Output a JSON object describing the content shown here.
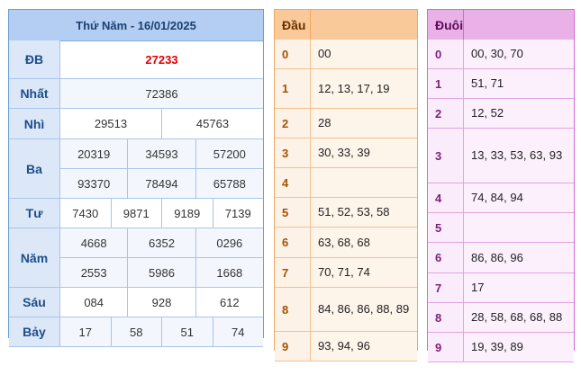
{
  "results": {
    "title": "Thứ Năm - 16/01/2025",
    "prizes": [
      {
        "name": "ĐB",
        "rows": [
          [
            "27233"
          ]
        ],
        "highlight": true
      },
      {
        "name": "Nhất",
        "rows": [
          [
            "72386"
          ]
        ]
      },
      {
        "name": "Nhì",
        "rows": [
          [
            "29513",
            "45763"
          ]
        ]
      },
      {
        "name": "Ba",
        "rows": [
          [
            "20319",
            "34593",
            "57200"
          ],
          [
            "93370",
            "78494",
            "65788"
          ]
        ]
      },
      {
        "name": "Tư",
        "rows": [
          [
            "7430",
            "9871",
            "9189",
            "7139"
          ]
        ]
      },
      {
        "name": "Năm",
        "rows": [
          [
            "4668",
            "6352",
            "0296"
          ],
          [
            "2553",
            "5986",
            "1668"
          ]
        ]
      },
      {
        "name": "Sáu",
        "rows": [
          [
            "084",
            "928",
            "612"
          ]
        ]
      },
      {
        "name": "Bảy",
        "rows": [
          [
            "17",
            "58",
            "51",
            "74"
          ]
        ]
      }
    ]
  },
  "head_table": {
    "header": "Đầu",
    "rows": [
      {
        "key": "0",
        "value": "00"
      },
      {
        "key": "1",
        "value": "12, 13, 17, 19"
      },
      {
        "key": "2",
        "value": "28"
      },
      {
        "key": "3",
        "value": "30, 33, 39"
      },
      {
        "key": "4",
        "value": ""
      },
      {
        "key": "5",
        "value": "51, 52, 53, 58"
      },
      {
        "key": "6",
        "value": "63, 68, 68"
      },
      {
        "key": "7",
        "value": "70, 71, 74"
      },
      {
        "key": "8",
        "value": "84, 86, 86, 88, 89"
      },
      {
        "key": "9",
        "value": "93, 94, 96"
      }
    ]
  },
  "tail_table": {
    "header": "Đuôi",
    "rows": [
      {
        "key": "0",
        "value": "00, 30, 70"
      },
      {
        "key": "1",
        "value": "51, 71"
      },
      {
        "key": "2",
        "value": "12, 52"
      },
      {
        "key": "3",
        "value": "13, 33, 53, 63, 93"
      },
      {
        "key": "4",
        "value": "74, 84, 94"
      },
      {
        "key": "5",
        "value": ""
      },
      {
        "key": "6",
        "value": "86, 86, 96"
      },
      {
        "key": "7",
        "value": "17"
      },
      {
        "key": "8",
        "value": "28, 58, 68, 68, 88"
      },
      {
        "key": "9",
        "value": "19, 39, 89"
      }
    ]
  }
}
